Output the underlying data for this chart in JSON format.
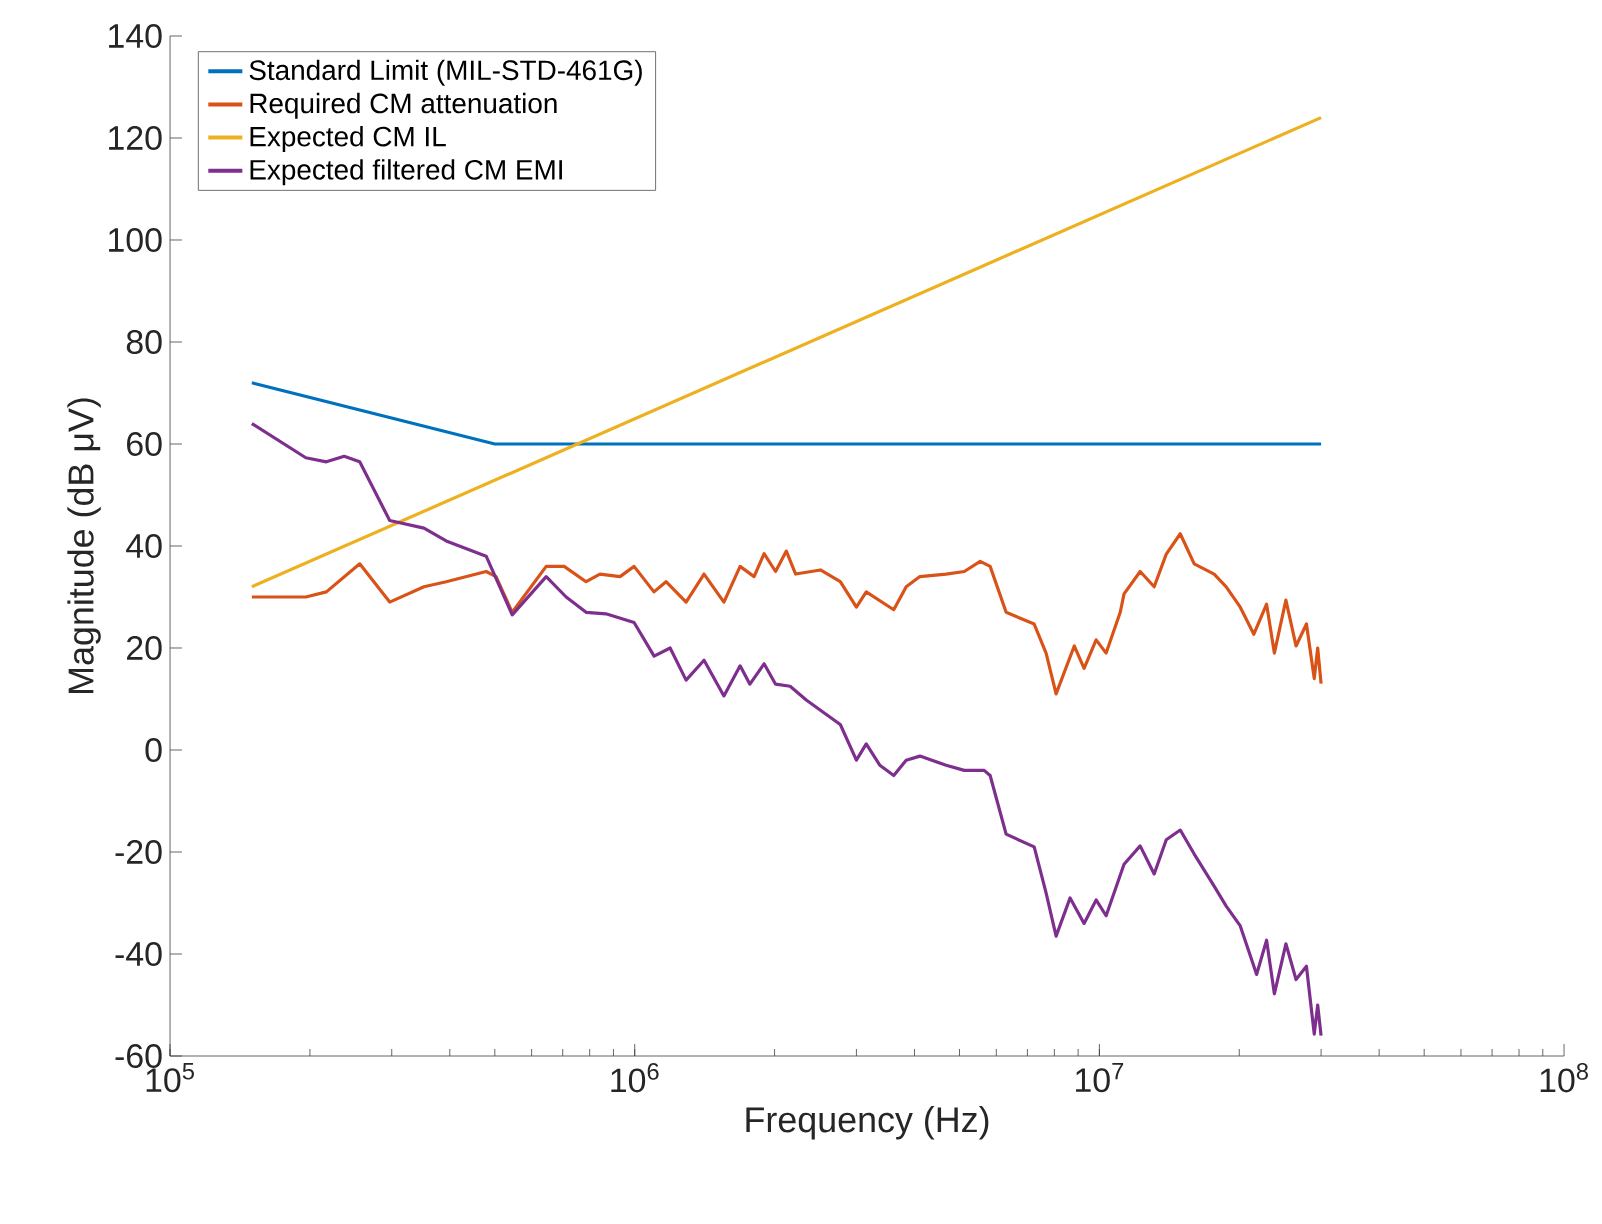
{
  "chart_data": {
    "type": "line",
    "xlabel": "Frequency (Hz)",
    "ylabel": "Magnitude (dB μV)",
    "log": "x",
    "legend": "top left",
    "xlim": [
      100000,
      100000000
    ],
    "xticks": [
      {
        "value": 100000,
        "label": "10$^{5}$"
      },
      {
        "value": 1000000,
        "label": "10$^{6}$"
      },
      {
        "value": 10000000,
        "label": "10$^{7}$"
      },
      {
        "value": 100000000,
        "label": "10$^{8}$"
      }
    ],
    "ylim": [
      -60,
      140
    ],
    "yticks": [
      -60,
      -40,
      -20,
      0,
      20,
      40,
      60,
      80,
      100,
      120,
      140
    ],
    "series": [
      {
        "name": "Standard Limit (MIL-STD-461G)",
        "color": "#0072bd",
        "x": [
          150000,
          500000,
          30000000
        ],
        "values": [
          72,
          60,
          60
        ]
      },
      {
        "name": "Required CM attenuation",
        "color": "#d95319",
        "x": [
          150000,
          196000,
          217000,
          256000,
          297000,
          352000,
          393000,
          479000,
          503000,
          545000,
          645000,
          705000,
          786000,
          842000,
          930000,
          997000,
          1100000,
          1168000,
          1290000,
          1410000,
          1556000,
          1686000,
          1807000,
          1899000,
          2010000,
          2120000,
          2220000,
          2510000,
          2770000,
          3000000,
          3150000,
          3610000,
          3840000,
          4110000,
          4680000,
          5120000,
          5540000,
          5820000,
          6300000,
          7240000,
          7680000,
          8070000,
          8830000,
          9270000,
          9840000,
          10340000,
          11090000,
          11300000,
          12240000,
          13120000,
          13930000,
          14930000,
          16000000,
          17660000,
          18750000,
          20100000,
          21500000,
          22900000,
          23800000,
          25200000,
          26500000,
          27900000,
          29000000,
          29500000,
          30000000
        ],
        "values": [
          30,
          30,
          31,
          36.5,
          29,
          32,
          33,
          35,
          34,
          27,
          36,
          36,
          33,
          34.5,
          34,
          36,
          31,
          33,
          29,
          34.5,
          29,
          36,
          34,
          38.5,
          35,
          39,
          34.5,
          35.3,
          33,
          28,
          31,
          27.5,
          32,
          34,
          34.5,
          35,
          37,
          36,
          27,
          24.7,
          19,
          11,
          20.4,
          16,
          21.6,
          19,
          27,
          30.6,
          35,
          32,
          38.4,
          42.4,
          36.5,
          34.5,
          32,
          28,
          22.7,
          28.6,
          19,
          29.4,
          20.4,
          24.7,
          14,
          20,
          13
        ]
      },
      {
        "name": "Expected CM IL",
        "color": "#edb120",
        "x": [
          150000,
          30000000
        ],
        "values": [
          32,
          124
        ]
      },
      {
        "name": "Expected filtered CM EMI",
        "color": "#7e2f8e",
        "x": [
          150000,
          196000,
          217000,
          237000,
          256000,
          297000,
          352000,
          393000,
          479000,
          545000,
          645000,
          712000,
          786000,
          867000,
          958000,
          997000,
          1101000,
          1192000,
          1290000,
          1410000,
          1556000,
          1686000,
          1770000,
          1899000,
          2010000,
          2160000,
          2340000,
          2580000,
          2770000,
          3000000,
          3150000,
          3370000,
          3610000,
          3840000,
          4110000,
          4680000,
          5120000,
          5650000,
          5820000,
          6300000,
          7240000,
          7680000,
          8070000,
          8650000,
          9270000,
          9840000,
          10340000,
          11300000,
          12240000,
          13120000,
          13930000,
          14930000,
          16000000,
          17660000,
          18750000,
          20100000,
          21800000,
          22900000,
          23800000,
          25200000,
          26500000,
          27900000,
          29000000,
          29500000,
          30000000
        ],
        "values": [
          64,
          57.3,
          56.5,
          57.6,
          56.5,
          45,
          43.5,
          41,
          38,
          26.5,
          34,
          30,
          27,
          26.7,
          25.5,
          25,
          18.4,
          20,
          13.7,
          17.6,
          10.6,
          16.5,
          12.9,
          16.9,
          12.9,
          12.5,
          9.8,
          7,
          5,
          -2,
          1.2,
          -3,
          -5,
          -2,
          -1.2,
          -3,
          -4,
          -4,
          -5,
          -16.5,
          -19,
          -28,
          -36.5,
          -29,
          -34,
          -29.4,
          -32.5,
          -22.4,
          -18.8,
          -24.3,
          -17.6,
          -15.7,
          -20.4,
          -26.7,
          -30.6,
          -34.5,
          -44,
          -37.3,
          -47.8,
          -38,
          -45,
          -42.4,
          -55.7,
          -50,
          -56
        ]
      }
    ]
  }
}
